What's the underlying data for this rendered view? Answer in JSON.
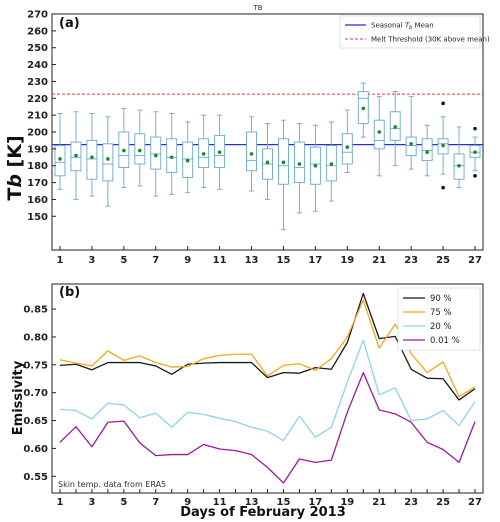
{
  "figure": {
    "top_title": "TB",
    "panel_a": "(a)",
    "panel_b": "(b)",
    "note": "Skin temp. data from ERA5",
    "xlabel": "Days of February 2013"
  },
  "chart_data": [
    {
      "type": "box",
      "title": "TB",
      "ylabel": "T_b [K]",
      "ylim": [
        130,
        270
      ],
      "yticks": [
        150,
        160,
        170,
        180,
        190,
        200,
        210,
        220,
        230,
        240,
        250,
        260,
        270
      ],
      "xlim": [
        0.5,
        27.5
      ],
      "xticks": [
        1,
        3,
        5,
        7,
        9,
        11,
        13,
        15,
        17,
        19,
        21,
        23,
        25,
        27
      ],
      "seasonal_mean": 192.5,
      "melt_threshold": 222.5,
      "legend": [
        "Seasonal T_b Mean",
        "Melt Threshold (30K above mean)"
      ],
      "legend_position": "top-right",
      "boxes": [
        {
          "day": 1,
          "whislo": 166,
          "q1": 174,
          "med": 182,
          "q3": 192,
          "whishi": 211,
          "mean": 184
        },
        {
          "day": 2,
          "whislo": 160,
          "q1": 177,
          "med": 185,
          "q3": 194,
          "whishi": 212,
          "mean": 186
        },
        {
          "day": 3,
          "whislo": 162,
          "q1": 172,
          "med": 184,
          "q3": 195,
          "whishi": 211,
          "mean": 185
        },
        {
          "day": 4,
          "whislo": 156,
          "q1": 171,
          "med": 181,
          "q3": 193,
          "whishi": 209,
          "mean": 184
        },
        {
          "day": 5,
          "whislo": 167,
          "q1": 179,
          "med": 186,
          "q3": 200,
          "whishi": 214,
          "mean": 189
        },
        {
          "day": 6,
          "whislo": 168,
          "q1": 181,
          "med": 186,
          "q3": 199,
          "whishi": 213,
          "mean": 189
        },
        {
          "day": 7,
          "whislo": 162,
          "q1": 178,
          "med": 187,
          "q3": 197,
          "whishi": 212,
          "mean": 186
        },
        {
          "day": 8,
          "whislo": 163,
          "q1": 176,
          "med": 185,
          "q3": 196,
          "whishi": 211,
          "mean": 185
        },
        {
          "day": 9,
          "whislo": 164,
          "q1": 173,
          "med": 184,
          "q3": 194,
          "whishi": 206,
          "mean": 183
        },
        {
          "day": 10,
          "whislo": 167,
          "q1": 179,
          "med": 185,
          "q3": 196,
          "whishi": 210,
          "mean": 187
        },
        {
          "day": 11,
          "whislo": 166,
          "q1": 179,
          "med": 186,
          "q3": 198,
          "whishi": 210,
          "mean": 188
        },
        {
          "day": 13,
          "whislo": 165,
          "q1": 177,
          "med": 183,
          "q3": 200,
          "whishi": 209,
          "mean": 187
        },
        {
          "day": 14,
          "whislo": 160,
          "q1": 172,
          "med": 181,
          "q3": 190,
          "whishi": 205,
          "mean": 182
        },
        {
          "day": 15,
          "whislo": 142,
          "q1": 169,
          "med": 180,
          "q3": 196,
          "whishi": 207,
          "mean": 182
        },
        {
          "day": 16,
          "whislo": 152,
          "q1": 170,
          "med": 179,
          "q3": 194,
          "whishi": 205,
          "mean": 181
        },
        {
          "day": 17,
          "whislo": 153,
          "q1": 169,
          "med": 181,
          "q3": 191,
          "whishi": 204,
          "mean": 180
        },
        {
          "day": 18,
          "whislo": 159,
          "q1": 171,
          "med": 180,
          "q3": 192,
          "whishi": 206,
          "mean": 181
        },
        {
          "day": 19,
          "whislo": 176,
          "q1": 181,
          "med": 188,
          "q3": 199,
          "whishi": 213,
          "mean": 191
        },
        {
          "day": 20,
          "whislo": 197,
          "q1": 205,
          "med": 220,
          "q3": 224,
          "whishi": 229,
          "mean": 214
        },
        {
          "day": 21,
          "whislo": 174,
          "q1": 190,
          "med": 195,
          "q3": 207,
          "whishi": 221,
          "mean": 200
        },
        {
          "day": 22,
          "whislo": 180,
          "q1": 195,
          "med": 202,
          "q3": 212,
          "whishi": 224,
          "mean": 203
        },
        {
          "day": 23,
          "whislo": 178,
          "q1": 186,
          "med": 192,
          "q3": 197,
          "whishi": 221,
          "mean": 193
        },
        {
          "day": 24,
          "whislo": 174,
          "q1": 183,
          "med": 189,
          "q3": 196,
          "whishi": 204,
          "mean": 188
        },
        {
          "day": 25,
          "whislo": 175,
          "q1": 187,
          "med": 193,
          "q3": 196,
          "whishi": 209,
          "mean": 192,
          "fliers": [
            217,
            167
          ]
        },
        {
          "day": 26,
          "whislo": 167,
          "q1": 172,
          "med": 180,
          "q3": 187,
          "whishi": 203,
          "mean": 180
        },
        {
          "day": 27,
          "whislo": 177,
          "q1": 185,
          "med": 188,
          "q3": 192,
          "whishi": 197,
          "mean": 188,
          "fliers": [
            202,
            174
          ]
        }
      ]
    },
    {
      "type": "line",
      "ylabel": "Emissivity",
      "ylim": [
        0.52,
        0.895
      ],
      "yticks": [
        0.55,
        0.6,
        0.65,
        0.7,
        0.75,
        0.8,
        0.85
      ],
      "xlim": [
        0.5,
        27.5
      ],
      "xticks": [
        1,
        2,
        3,
        4,
        5,
        6,
        7,
        8,
        9,
        10,
        11,
        12,
        13,
        14,
        15,
        16,
        17,
        18,
        19,
        20,
        21,
        22,
        23,
        24,
        25,
        26,
        27
      ],
      "xticklabels": [
        "1",
        "",
        "3",
        "",
        "5",
        "",
        "7",
        "",
        "9",
        "",
        "11",
        "",
        "13",
        "",
        "15",
        "",
        "17",
        "",
        "19",
        "",
        "21",
        "",
        "23",
        "",
        "25",
        "",
        "27"
      ],
      "legend_position": "top-right",
      "x": [
        1,
        2,
        3,
        4,
        5,
        6,
        7,
        8,
        9,
        10,
        11,
        12,
        13,
        14,
        15,
        16,
        17,
        18,
        19,
        20,
        21,
        22,
        23,
        24,
        25,
        26,
        27
      ],
      "series": [
        {
          "name": "90 %",
          "color": "#1a1a1a",
          "values": [
            0.749,
            0.751,
            0.741,
            0.754,
            0.754,
            0.754,
            0.748,
            0.733,
            0.751,
            0.753,
            0.754,
            0.754,
            0.754,
            0.727,
            0.736,
            0.735,
            0.745,
            0.742,
            0.79,
            0.878,
            0.797,
            0.801,
            0.742,
            0.726,
            0.725,
            0.687,
            0.707
          ]
        },
        {
          "name": "75 %",
          "color": "#f2a81d",
          "values": [
            0.759,
            0.753,
            0.748,
            0.775,
            0.758,
            0.766,
            0.754,
            0.746,
            0.747,
            0.761,
            0.767,
            0.769,
            0.769,
            0.73,
            0.749,
            0.752,
            0.74,
            0.761,
            0.8,
            0.866,
            0.78,
            0.823,
            0.77,
            0.736,
            0.755,
            0.693,
            0.71
          ]
        },
        {
          "name": "20 %",
          "color": "#8fd3ec",
          "values": [
            0.67,
            0.668,
            0.653,
            0.681,
            0.678,
            0.655,
            0.663,
            0.638,
            0.665,
            0.661,
            0.654,
            0.648,
            0.638,
            0.631,
            0.614,
            0.658,
            0.62,
            0.638,
            0.719,
            0.794,
            0.696,
            0.709,
            0.65,
            0.653,
            0.668,
            0.641,
            0.684
          ]
        },
        {
          "name": "0.01 %",
          "color": "#9a1a9c",
          "values": [
            0.611,
            0.639,
            0.603,
            0.647,
            0.649,
            0.61,
            0.587,
            0.589,
            0.589,
            0.607,
            0.599,
            0.596,
            0.589,
            0.566,
            0.538,
            0.581,
            0.575,
            0.579,
            0.665,
            0.736,
            0.669,
            0.662,
            0.647,
            0.611,
            0.598,
            0.575,
            0.648
          ]
        }
      ]
    }
  ]
}
